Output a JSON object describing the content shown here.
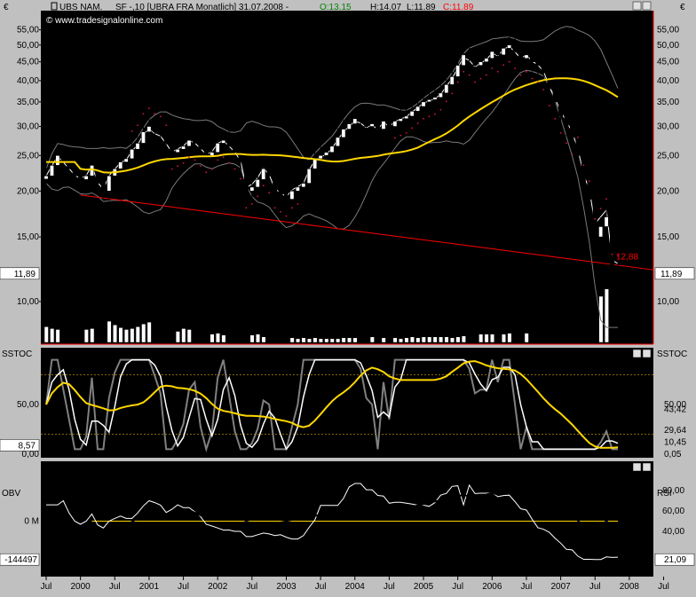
{
  "header": {
    "currency": "€",
    "symbol": "UBS NAM.",
    "info": "SF -,10 [UBRA FRA  Monatlich] 31.07.2008 - ",
    "open": "O:13.15",
    "high": "H:14.07",
    "low": "L:11.89",
    "close": "C:11.89",
    "copyright": "© www.tradesignalonline.com"
  },
  "colors": {
    "background": "#000000",
    "text": "#ffffff",
    "price_up": "#ffffff",
    "price_down": "#000000",
    "bollinger": "#000000",
    "trendline": "#ff0000",
    "ma_yellow": "#ffd700",
    "parabolic_sar": "#dc143c",
    "stoch_line_1": "#808080",
    "stoch_line_2": "#ffffff",
    "obv_line": "#000000",
    "rsi_line": "#ffffff"
  },
  "main_panel": {
    "y_labels": [
      "55,00",
      "50,00",
      "45,00",
      "40,00",
      "35,00",
      "30,00",
      "25,00",
      "20,00",
      "15,00",
      "10,00"
    ],
    "last_price_label": "11,89",
    "trendline_label": "12,88"
  },
  "stoch_panel": {
    "title": "SSTOC",
    "y_labels": [
      "50,00",
      "0,00"
    ],
    "left_readout": "8,57",
    "right_readouts": [
      "50,00",
      "43,42",
      "29,64",
      "10,45",
      "0,05"
    ]
  },
  "obv_panel": {
    "title_left": "OBV",
    "title_right": "RSI",
    "left_labels": [
      "0 M"
    ],
    "left_readout": "-144497",
    "right_labels": [
      "80,00",
      "60,00",
      "40,00"
    ],
    "right_readout": "21,09"
  },
  "x_axis": {
    "labels": [
      "Jul",
      "2000",
      "Jul",
      "2001",
      "Jul",
      "2002",
      "Jul",
      "2003",
      "Jul",
      "2004",
      "Jul",
      "2005",
      "Jul",
      "2006",
      "Jul",
      "2007",
      "Jul",
      "2008",
      "Jul"
    ]
  },
  "chart_data": {
    "type": "candlestick",
    "interval": "monthly",
    "start_month": "1999-07",
    "end_month": "2008-07",
    "closes": [
      22,
      23.5,
      25,
      24,
      23,
      22,
      21.5,
      22,
      23.5,
      21,
      20,
      22,
      23,
      24,
      24.5,
      26,
      27,
      29,
      30,
      29,
      28.5,
      27,
      25.5,
      26,
      26.5,
      27.5,
      27,
      26,
      25,
      25.5,
      27,
      27.5,
      26.5,
      25.5,
      24,
      20,
      20.5,
      21.5,
      23,
      22,
      20,
      19.5,
      19,
      20,
      20.5,
      21,
      23,
      24.5,
      25,
      25.5,
      26.5,
      28,
      29.5,
      30.5,
      31.5,
      31,
      30,
      30.5,
      29.5,
      31,
      30,
      31,
      31.5,
      32,
      33,
      34,
      35,
      35.5,
      36,
      37,
      39,
      41,
      44,
      47,
      46,
      44,
      45,
      46,
      48,
      47,
      49,
      50,
      48,
      46,
      47,
      45,
      44,
      42,
      38,
      35,
      32,
      30,
      28,
      25,
      21,
      19,
      15,
      16,
      17,
      12,
      11.89
    ],
    "volume": [
      17,
      15,
      14,
      14,
      14,
      13,
      13,
      14,
      15,
      16,
      18,
      23,
      19,
      16,
      14,
      15,
      17,
      20,
      22,
      12,
      11,
      14,
      11,
      12,
      15,
      14,
      11,
      12,
      10,
      9,
      10,
      8,
      9,
      11,
      10,
      12,
      8,
      9,
      6,
      7,
      6,
      5,
      5,
      5,
      4,
      5,
      4,
      5,
      4,
      4,
      4,
      4,
      5,
      5,
      5,
      5,
      5,
      6,
      6,
      5,
      5,
      5,
      4,
      5,
      6,
      5,
      6,
      6,
      6,
      6,
      6,
      5,
      6,
      7,
      8,
      9,
      9,
      9,
      9,
      10,
      9,
      10,
      10,
      10,
      10,
      11,
      11,
      11,
      11,
      12,
      13,
      15,
      18,
      22,
      28,
      35,
      42,
      50,
      58,
      68,
      75
    ],
    "series": [
      {
        "name": "SSTOC %K",
        "color": "#808080"
      },
      {
        "name": "SSTOC %D",
        "color": "#ffffff"
      },
      {
        "name": "OBV",
        "color": "#000000"
      },
      {
        "name": "RSI",
        "color": "#ffffff"
      }
    ],
    "ylim_price": [
      8,
      60
    ],
    "y_scale": "log"
  }
}
